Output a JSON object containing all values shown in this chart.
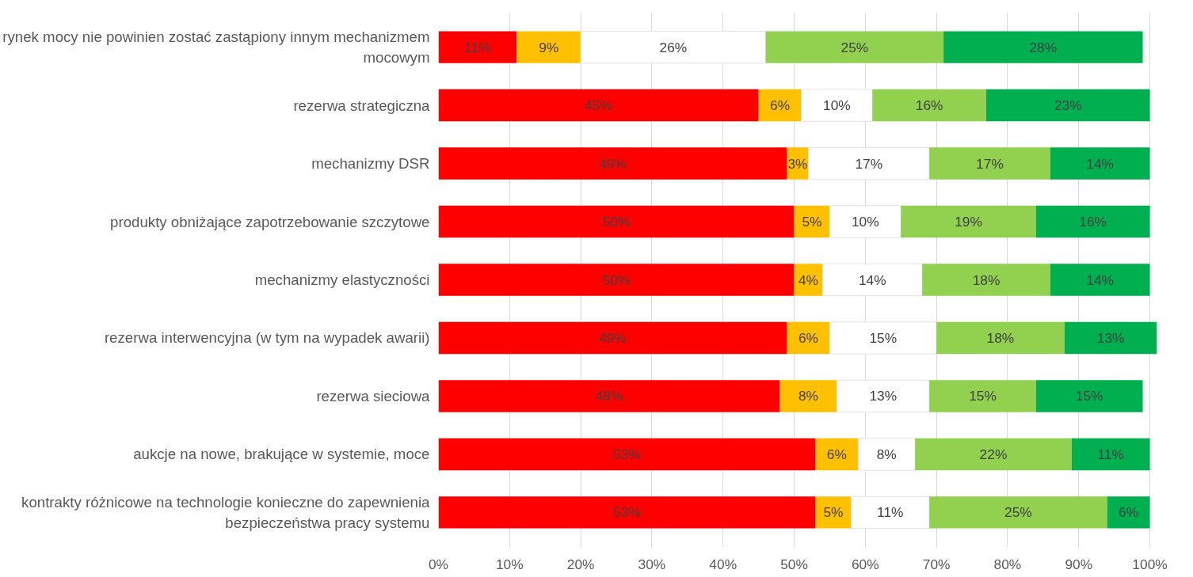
{
  "chart_data": {
    "type": "bar",
    "orientation": "horizontal",
    "stacked": true,
    "categories": [
      "rynek mocy nie powinien zostać zastąpiony innym mechanizmem mocowym",
      "rezerwa strategiczna",
      "mechanizmy DSR",
      "produkty obniżające zapotrzebowanie szczytowe",
      "mechanizmy elastyczności",
      "rezerwa interwencyjna (w tym na wypadek awarii)",
      "rezerwa sieciowa",
      "aukcje na nowe, brakujące w systemie, moce",
      "kontrakty różnicowe na technologie konieczne do zapewnienia bezpieczeństwa pracy systemu"
    ],
    "series": [
      {
        "color": "#ff0000",
        "values": [
          11,
          45,
          49,
          50,
          50,
          49,
          48,
          53,
          53
        ],
        "value_labels": [
          "11%",
          "45%",
          "49%",
          "50%",
          "50%",
          "49%",
          "48%",
          "53%",
          "53%"
        ]
      },
      {
        "color": "#ffc000",
        "values": [
          9,
          6,
          3,
          5,
          4,
          6,
          8,
          6,
          5
        ],
        "value_labels": [
          "9%",
          "6%",
          "3%",
          "5%",
          "4%",
          "6%",
          "8%",
          "6%",
          "5%"
        ]
      },
      {
        "color": "#ffffff",
        "values": [
          26,
          10,
          17,
          10,
          14,
          15,
          13,
          8,
          11
        ],
        "value_labels": [
          "26%",
          "10%",
          "17%",
          "10%",
          "14%",
          "15%",
          "13%",
          "8%",
          "11%"
        ]
      },
      {
        "color": "#92d050",
        "values": [
          25,
          16,
          17,
          19,
          18,
          18,
          15,
          22,
          25
        ],
        "value_labels": [
          "25%",
          "16%",
          "17%",
          "19%",
          "18%",
          "18%",
          "15%",
          "22%",
          "25%"
        ]
      },
      {
        "color": "#00b050",
        "values": [
          28,
          23,
          14,
          16,
          14,
          13,
          15,
          11,
          6
        ],
        "value_labels": [
          "28%",
          "23%",
          "14%",
          "16%",
          "14%",
          "13%",
          "15%",
          "11%",
          "6%"
        ]
      }
    ],
    "xlim": [
      0,
      101
    ],
    "xticks": [
      {
        "value": 0,
        "label": "0%"
      },
      {
        "value": 10,
        "label": "10%"
      },
      {
        "value": 20,
        "label": "20%"
      },
      {
        "value": 30,
        "label": "30%"
      },
      {
        "value": 40,
        "label": "40%"
      },
      {
        "value": 50,
        "label": "50%"
      },
      {
        "value": 60,
        "label": "60%"
      },
      {
        "value": 70,
        "label": "70%"
      },
      {
        "value": 80,
        "label": "80%"
      },
      {
        "value": 90,
        "label": "90%"
      },
      {
        "value": 100,
        "label": "100%"
      }
    ],
    "grid": "x"
  }
}
